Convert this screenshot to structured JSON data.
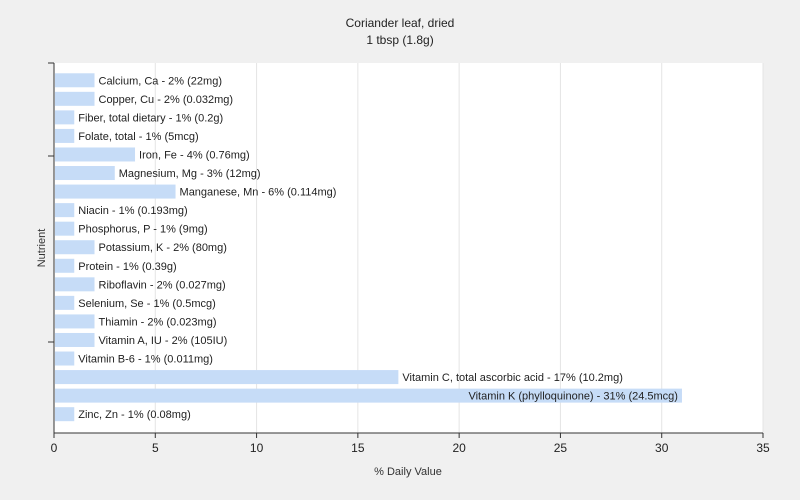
{
  "chart_data": {
    "type": "bar",
    "orientation": "horizontal",
    "title": "Coriander leaf, dried",
    "subtitle": "1 tbsp (1.8g)",
    "xlabel": "% Daily Value",
    "ylabel": "Nutrient",
    "xlim": [
      0,
      35
    ],
    "xticks": [
      0,
      5,
      10,
      15,
      20,
      25,
      30,
      35
    ],
    "grid": true,
    "bar_color": "#c6dcf7",
    "categories": [
      "Calcium, Ca - 2% (22mg)",
      "Copper, Cu - 2% (0.032mg)",
      "Fiber, total dietary - 1% (0.2g)",
      "Folate, total - 1% (5mcg)",
      "Iron, Fe - 4% (0.76mg)",
      "Magnesium, Mg - 3% (12mg)",
      "Manganese, Mn - 6% (0.114mg)",
      "Niacin - 1% (0.193mg)",
      "Phosphorus, P - 1% (9mg)",
      "Potassium, K - 2% (80mg)",
      "Protein - 1% (0.39g)",
      "Riboflavin - 2% (0.027mg)",
      "Selenium, Se - 1% (0.5mcg)",
      "Thiamin - 2% (0.023mg)",
      "Vitamin A, IU - 2% (105IU)",
      "Vitamin B-6 - 1% (0.011mg)",
      "Vitamin C, total ascorbic acid - 17% (10.2mg)",
      "Vitamin K (phylloquinone) - 31% (24.5mcg)",
      "Zinc, Zn - 1% (0.08mg)"
    ],
    "values": [
      2,
      2,
      1,
      1,
      4,
      3,
      6,
      1,
      1,
      2,
      1,
      2,
      1,
      2,
      2,
      1,
      17,
      31,
      1
    ]
  }
}
